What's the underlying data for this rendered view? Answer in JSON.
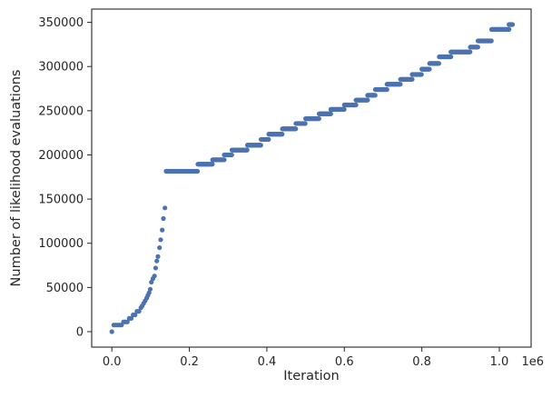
{
  "chart_data": {
    "type": "scatter",
    "xlabel": "Iteration",
    "ylabel": "Number of likelihood evaluations",
    "x_offset_label": "1e6",
    "xlim": [
      -0.052,
      1.082
    ],
    "ylim": [
      -17500,
      365000
    ],
    "x_scale_factor": 1000000,
    "xticks": [
      0.0,
      0.2,
      0.4,
      0.6,
      0.8,
      1.0
    ],
    "xtick_labels": [
      "0.0",
      "0.2",
      "0.4",
      "0.6",
      "0.8",
      "1.0"
    ],
    "yticks": [
      0,
      50000,
      100000,
      150000,
      200000,
      250000,
      300000,
      350000
    ],
    "ytick_labels": [
      "0",
      "50000",
      "100000",
      "150000",
      "200000",
      "250000",
      "300000",
      "350000"
    ],
    "grid": false,
    "color": "#4C72B0",
    "series": [
      {
        "early_points": [
          [
            0,
            0
          ],
          [
            5000,
            7500
          ],
          [
            10000,
            7500
          ],
          [
            15000,
            7500
          ],
          [
            20000,
            7500
          ],
          [
            25000,
            7500
          ],
          [
            30000,
            11000
          ],
          [
            35000,
            11000
          ],
          [
            40000,
            11000
          ],
          [
            45000,
            15000
          ],
          [
            50000,
            15000
          ],
          [
            55000,
            19000
          ],
          [
            60000,
            19000
          ],
          [
            65000,
            23000
          ],
          [
            70000,
            23000
          ],
          [
            75000,
            27000
          ],
          [
            78000,
            29000
          ],
          [
            82000,
            32000
          ],
          [
            86000,
            35000
          ],
          [
            90000,
            38000
          ],
          [
            93000,
            41000
          ],
          [
            96000,
            44000
          ],
          [
            99000,
            48000
          ],
          [
            102000,
            56000
          ],
          [
            106000,
            60000
          ],
          [
            110000,
            63000
          ],
          [
            113000,
            72000
          ],
          [
            116000,
            80000
          ],
          [
            119000,
            85000
          ],
          [
            123000,
            95000
          ],
          [
            126000,
            104000
          ],
          [
            130000,
            115000
          ],
          [
            133000,
            128000
          ],
          [
            137000,
            140000
          ]
        ],
        "steps": [
          [
            140000,
            222000,
            181500
          ],
          [
            222000,
            260000,
            189500
          ],
          [
            260000,
            290000,
            194500
          ],
          [
            290000,
            310000,
            200000
          ],
          [
            310000,
            350000,
            205500
          ],
          [
            350000,
            385000,
            211000
          ],
          [
            385000,
            405000,
            217500
          ],
          [
            405000,
            440000,
            223500
          ],
          [
            440000,
            475000,
            229500
          ],
          [
            475000,
            500000,
            235500
          ],
          [
            500000,
            535000,
            241000
          ],
          [
            535000,
            565000,
            246500
          ],
          [
            565000,
            600000,
            251500
          ],
          [
            600000,
            630000,
            256500
          ],
          [
            630000,
            660000,
            262000
          ],
          [
            660000,
            680000,
            267500
          ],
          [
            680000,
            710000,
            274000
          ],
          [
            710000,
            745000,
            280000
          ],
          [
            745000,
            775000,
            285500
          ],
          [
            775000,
            800000,
            291000
          ],
          [
            800000,
            820000,
            297000
          ],
          [
            820000,
            845000,
            303500
          ],
          [
            845000,
            875000,
            311000
          ],
          [
            875000,
            925000,
            316500
          ],
          [
            925000,
            945000,
            322000
          ],
          [
            945000,
            980000,
            329000
          ],
          [
            980000,
            1025000,
            342000
          ],
          [
            1025000,
            1035000,
            347500
          ]
        ]
      }
    ]
  }
}
